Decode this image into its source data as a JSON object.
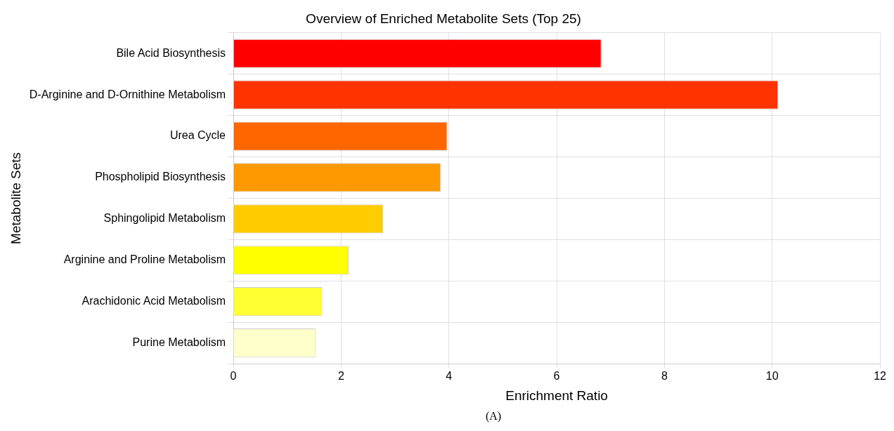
{
  "chart_data": {
    "type": "bar",
    "orientation": "horizontal",
    "title": "Overview of Enriched Metabolite Sets (Top 25)",
    "xlabel": "Enrichment Ratio",
    "ylabel": "Metabolite Sets",
    "categories": [
      "Bile Acid Biosynthesis",
      "D-Arginine and D-Ornithine Metabolism",
      "Urea Cycle",
      "Phospholipid Biosynthesis",
      "Sphingolipid Metabolism",
      "Arginine and Proline Metabolism",
      "Arachidonic Acid Metabolism",
      "Purine Metabolism"
    ],
    "values": [
      6.83,
      10.11,
      3.97,
      3.85,
      2.78,
      2.14,
      1.65,
      1.53
    ],
    "colors": [
      "#ff0000",
      "#ff3300",
      "#ff6600",
      "#ff9900",
      "#ffcc00",
      "#ffff00",
      "#ffff33",
      "#ffffcc"
    ],
    "xlim": [
      0,
      12
    ],
    "xticks": [
      0,
      2,
      4,
      6,
      8,
      10,
      12
    ],
    "grid": true,
    "legend": false,
    "annotations": [
      "(A)"
    ]
  }
}
